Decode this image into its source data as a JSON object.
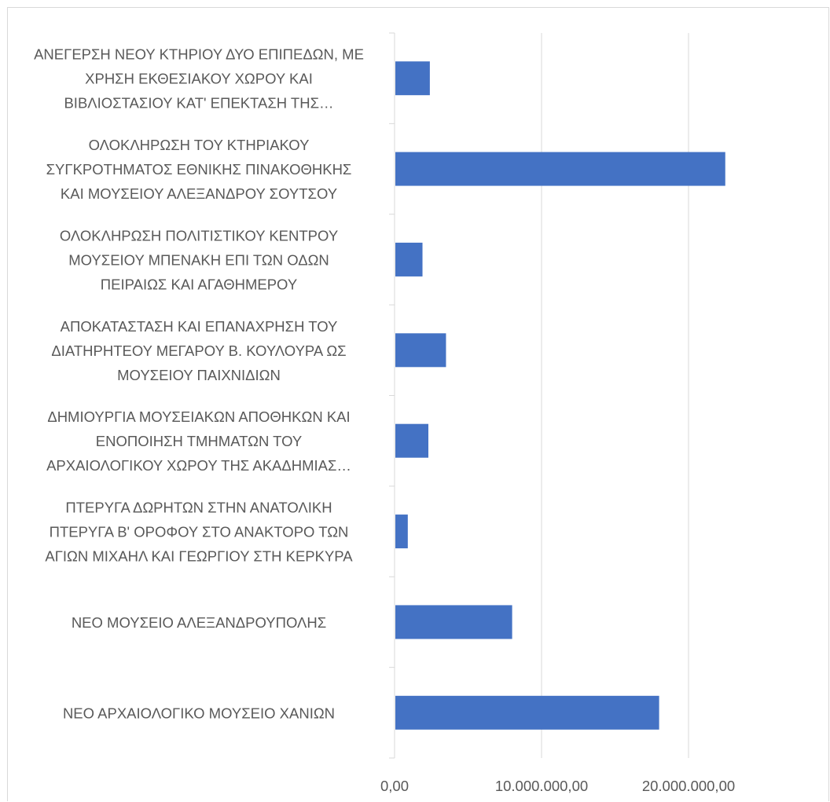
{
  "chart_data": {
    "type": "bar",
    "orientation": "horizontal",
    "title": "",
    "xlabel": "",
    "ylabel": "",
    "xlim": [
      0,
      30000000
    ],
    "grid": true,
    "legend": "none",
    "bar_color": "#4472c4",
    "grid_color": "#d9d9d9",
    "text_color": "#595959",
    "categories": [
      {
        "lines": [
          "ΑΝΕΓΕΡΣΗ ΝΕΟΥ ΚΤΗΡΙΟΥ ΔΥΟ ΕΠΙΠΕΔΩΝ, ΜΕ",
          "ΧΡΗΣΗ ΕΚΘΕΣΙΑΚΟΥ ΧΩΡΟΥ ΚΑΙ",
          "ΒΙΒΛΙΟΣΤΑΣΙΟΥ ΚΑΤ'  ΕΠΕΚΤΑΣΗ ΤΗΣ…"
        ]
      },
      {
        "lines": [
          "ΟΛΟΚΛΗΡΩΣΗ ΤΟΥ ΚΤΗΡΙΑΚΟΥ",
          "ΣΥΓΚΡΟΤΗΜΑΤΟΣ ΕΘΝΙΚΗΣ ΠΙΝΑΚΟΘΗΚΗΣ",
          "ΚΑΙ ΜΟΥΣΕΙΟΥ ΑΛΕΞΑΝΔΡΟΥ ΣΟΥΤΣΟΥ"
        ]
      },
      {
        "lines": [
          "ΟΛΟΚΛΗΡΩΣΗ ΠΟΛΙΤΙΣΤΙΚΟΥ ΚΕΝΤΡΟΥ",
          "ΜΟΥΣΕΙΟΥ ΜΠΕΝΑΚΗ ΕΠΙ ΤΩΝ ΟΔΩΝ",
          "ΠΕΙΡΑΙΩΣ ΚΑΙ ΑΓΑΘΗΜΕΡΟΥ"
        ]
      },
      {
        "lines": [
          "ΑΠΟΚΑΤΑΣΤΑΣΗ ΚΑΙ ΕΠΑΝΑΧΡΗΣΗ ΤΟΥ",
          "ΔΙΑΤΗΡΗΤΕΟΥ ΜΕΓΑΡΟΥ Β. ΚΟΥΛΟΥΡΑ ΩΣ",
          "ΜΟΥΣΕΙΟΥ ΠΑΙΧΝΙΔΙΩΝ"
        ]
      },
      {
        "lines": [
          "ΔΗΜΙΟΥΡΓΙΑ ΜΟΥΣΕΙΑΚΩΝ ΑΠΟΘΗΚΩΝ ΚΑΙ",
          "ΕΝΟΠΟΙΗΣΗ ΤΜΗΜΑΤΩΝ ΤΟΥ",
          "ΑΡΧΑΙΟΛΟΓΙΚΟΥ ΧΩΡΟΥ ΤΗΣ ΑΚΑΔΗΜΙΑΣ…"
        ]
      },
      {
        "lines": [
          "ΠΤΕΡΥΓΑ ΔΩΡΗΤΩΝ ΣΤΗΝ ΑΝΑΤΟΛΙΚΗ",
          "ΠΤΕΡΥΓΑ Β'  ΟΡΟΦΟΥ ΣΤΟ ΑΝΑΚΤΟΡΟ ΤΩΝ",
          "ΑΓΙΩΝ ΜΙΧΑΗΛ ΚΑΙ ΓΕΩΡΓΙΟΥ ΣΤΗ ΚΕΡΚΥΡΑ"
        ]
      },
      {
        "lines": [
          "ΝΕΟ ΜΟΥΣΕΙΟ ΑΛΕΞΑΝΔΡΟΥΠΟΛΗΣ"
        ]
      },
      {
        "lines": [
          "ΝΕΟ ΑΡΧΑΙΟΛΟΓΙΚΟ ΜΟΥΣΕΙΟ ΧΑΝΙΩΝ"
        ]
      }
    ],
    "values": [
      2400000,
      22500000,
      1900000,
      3500000,
      2300000,
      900000,
      8000000,
      18000000
    ],
    "x_ticks": [
      {
        "value": 0,
        "label": "0,00"
      },
      {
        "value": 10000000,
        "label": "10.000.000,00"
      },
      {
        "value": 20000000,
        "label": "20.000.000,00"
      }
    ]
  }
}
